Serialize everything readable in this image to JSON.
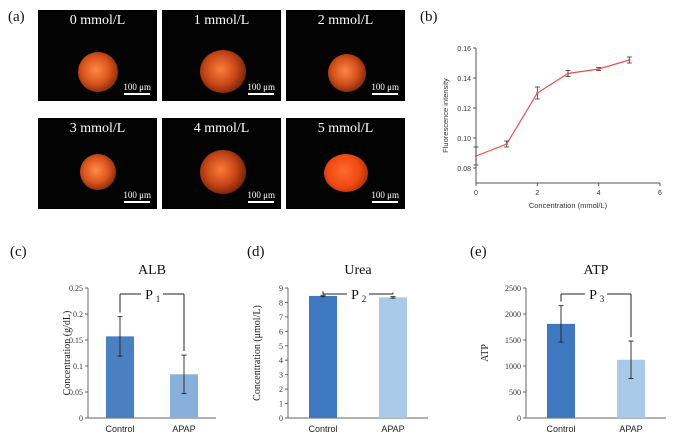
{
  "panels": {
    "a": {
      "label": "(a)",
      "images": [
        {
          "caption": "0 mmol/L",
          "scale": "100 μm"
        },
        {
          "caption": "1 mmol/L",
          "scale": "100 μm"
        },
        {
          "caption": "2 mmol/L",
          "scale": "100 μm"
        },
        {
          "caption": "3 mmol/L",
          "scale": "100 μm"
        },
        {
          "caption": "4 mmol/L",
          "scale": "100 μm"
        },
        {
          "caption": "5 mmol/L",
          "scale": "100 μm"
        }
      ]
    },
    "b": {
      "label": "(b)"
    },
    "c": {
      "label": "(c)",
      "bracket_p": "P",
      "bracket_sub": "1"
    },
    "d": {
      "label": "(d)",
      "bracket_p": "P",
      "bracket_sub": "2"
    },
    "e": {
      "label": "(e)",
      "bracket_p": "P",
      "bracket_sub": "3"
    }
  },
  "chart_data": [
    {
      "type": "line",
      "panel": "b",
      "title": "",
      "xlabel": "Concentration (mmol/L)",
      "ylabel": "Fluorescence intensity",
      "xlim": [
        0,
        6
      ],
      "ylim": [
        0.07,
        0.16
      ],
      "xticks": [
        "0",
        "2",
        "4",
        "6"
      ],
      "yticks": [
        "0.08",
        "0.10",
        "0.12",
        "0.14",
        "0.16"
      ],
      "color": "#e8504a",
      "x": [
        0,
        1,
        2,
        3,
        4,
        5
      ],
      "y": [
        0.088,
        0.096,
        0.13,
        0.143,
        0.146,
        0.152
      ],
      "errors": [
        0.006,
        0.002,
        0.004,
        0.002,
        0.001,
        0.002
      ]
    },
    {
      "type": "bar",
      "panel": "c",
      "title": "ALB",
      "xlabel": "",
      "ylabel": "Concentration (g/dL)",
      "ylim": [
        0,
        0.25
      ],
      "yticks": [
        "0",
        "0.05",
        "0.1",
        "0.15",
        "0.2",
        "0.25"
      ],
      "categories": [
        "Control",
        "APAP"
      ],
      "values": [
        0.157,
        0.084
      ],
      "errors": [
        0.038,
        0.037
      ],
      "colors": [
        "#4a7fc1",
        "#89b0dc"
      ]
    },
    {
      "type": "bar",
      "panel": "d",
      "title": "Urea",
      "xlabel": "",
      "ylabel": "Concentration (μmol/L)",
      "ylim": [
        0,
        9
      ],
      "yticks": [
        "0",
        "1",
        "2",
        "3",
        "4",
        "5",
        "6",
        "7",
        "8",
        "9"
      ],
      "categories": [
        "Control",
        "APAP"
      ],
      "values": [
        8.45,
        8.35
      ],
      "errors": [
        0.05,
        0.05
      ],
      "colors": [
        "#3e78c0",
        "#a9c9e8"
      ]
    },
    {
      "type": "bar",
      "panel": "e",
      "title": "ATP",
      "xlabel": "",
      "ylabel": "ATP",
      "ylim": [
        0,
        2500
      ],
      "yticks": [
        "0",
        "500",
        "1000",
        "1500",
        "2000",
        "2500"
      ],
      "categories": [
        "Control",
        "APAP"
      ],
      "values": [
        1810,
        1120
      ],
      "errors": [
        350,
        360
      ],
      "colors": [
        "#3e78c0",
        "#a9c9e8"
      ]
    }
  ]
}
